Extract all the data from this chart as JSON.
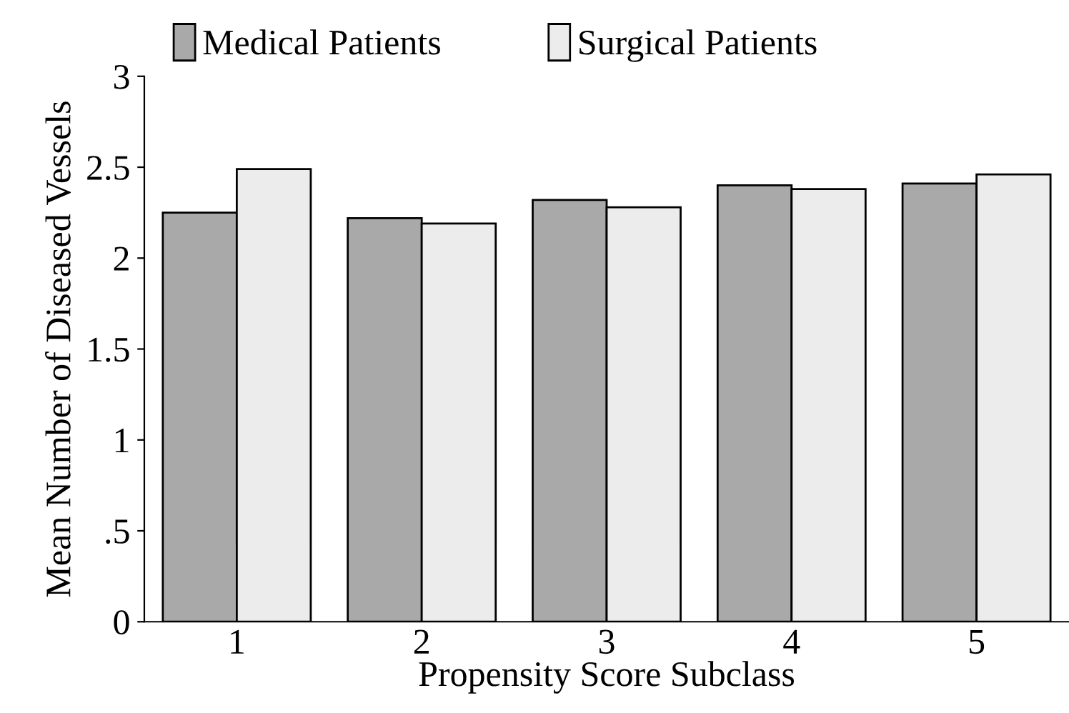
{
  "chart_data": {
    "type": "bar",
    "xlabel": "Propensity Score Subclass",
    "ylabel": "Mean Number of Diseased Vessels",
    "categories": [
      "1",
      "2",
      "3",
      "4",
      "5"
    ],
    "series": [
      {
        "name": "Medical Patients",
        "color": "#a9a9a9",
        "values": [
          2.25,
          2.22,
          2.32,
          2.4,
          2.41
        ]
      },
      {
        "name": "Surgical Patients",
        "color": "#ececec",
        "values": [
          2.49,
          2.19,
          2.28,
          2.38,
          2.46
        ]
      }
    ],
    "ylim": [
      0,
      3
    ],
    "yticks": [
      0,
      {
        "value": 0.5,
        "label": ".5"
      },
      1,
      1.5,
      2,
      2.5,
      3
    ],
    "grid": false,
    "legend": "top"
  }
}
